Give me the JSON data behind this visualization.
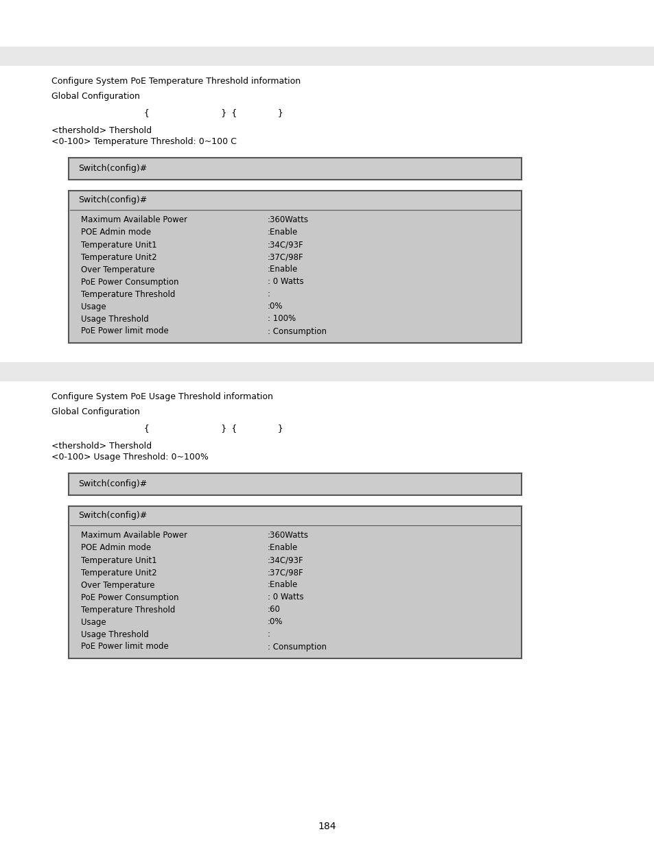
{
  "bg_color": "#ffffff",
  "light_gray": "#e8e8e8",
  "box_outer_bg": "#cccccc",
  "box_border": "#555555",
  "box_inner_bg": "#c8c8c8",
  "box_header_bg": "#cccccc",
  "text_color": "#000000",
  "section1_title": "Configure System PoE Temperature Threshold information",
  "section1_subtitle": "Global Configuration",
  "section1_cmd": "          {              } {        }",
  "section1_param1": "<thershold> Thershold",
  "section1_param2": "<0-100> Temperature Threshold: 0~100 C",
  "box1_label": "Switch(config)#",
  "box2_label": "Switch(config)#",
  "box2_rows": [
    [
      "Maximum Available Power",
      ":360Watts"
    ],
    [
      "POE Admin mode",
      ":Enable"
    ],
    [
      "Temperature Unit1",
      ":34C/93F"
    ],
    [
      "Temperature Unit2",
      ":37C/98F"
    ],
    [
      "Over Temperature",
      ":Enable"
    ],
    [
      "PoE Power Consumption",
      ": 0 Watts"
    ],
    [
      "Temperature Threshold",
      ":"
    ],
    [
      "Usage",
      ":0%"
    ],
    [
      "Usage Threshold",
      ": 100%"
    ],
    [
      "PoE Power limit mode",
      ": Consumption"
    ]
  ],
  "section2_title": "Configure System PoE Usage Threshold information",
  "section2_subtitle": "Global Configuration",
  "section2_cmd": "          {              } {        }",
  "section2_param1": "<thershold> Thershold",
  "section2_param2": "<0-100> Usage Threshold: 0~100%",
  "box3_label": "Switch(config)#",
  "box4_label": "Switch(config)#",
  "box4_rows": [
    [
      "Maximum Available Power",
      ":360Watts"
    ],
    [
      "POE Admin mode",
      ":Enable"
    ],
    [
      "Temperature Unit1",
      ":34C/93F"
    ],
    [
      "Temperature Unit2",
      ":37C/98F"
    ],
    [
      "Over Temperature",
      ":Enable"
    ],
    [
      "PoE Power Consumption",
      ": 0 Watts"
    ],
    [
      "Temperature Threshold",
      ":60"
    ],
    [
      "Usage",
      ":0%"
    ],
    [
      "Usage Threshold",
      ":"
    ],
    [
      "PoE Power limit mode",
      ": Consumption"
    ]
  ],
  "page_number": "184"
}
